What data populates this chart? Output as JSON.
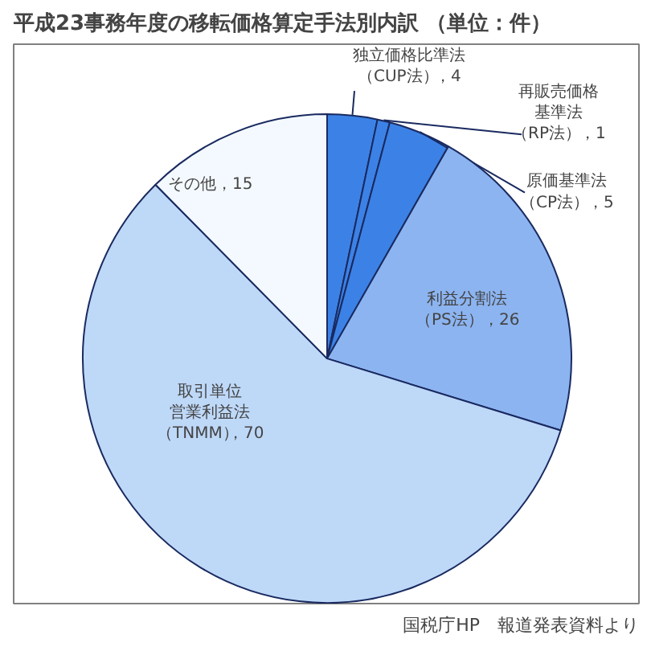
{
  "chart_data": {
    "type": "pie",
    "title": "平成23事務年度の移転価格算定手法別内訳 （単位：件）",
    "categories": [
      "独立価格比準法（CUP法）",
      "再販売価格基準法（RP法）",
      "原価基準法（CP法）",
      "利益分割法（PS法）",
      "取引単位営業利益法（TNMM）",
      "その他"
    ],
    "values": [
      4,
      1,
      5,
      26,
      70,
      15
    ],
    "colors": [
      "#3c82e6",
      "#3c82e6",
      "#3c82e6",
      "#8cb4f0",
      "#bed8f8",
      "#f4f9ff"
    ],
    "value_labels": [
      "，4",
      "，1",
      "，5",
      "，26",
      "，70",
      "，15"
    ],
    "annotations": [
      "国税庁HP　報道発表資料より"
    ]
  }
}
